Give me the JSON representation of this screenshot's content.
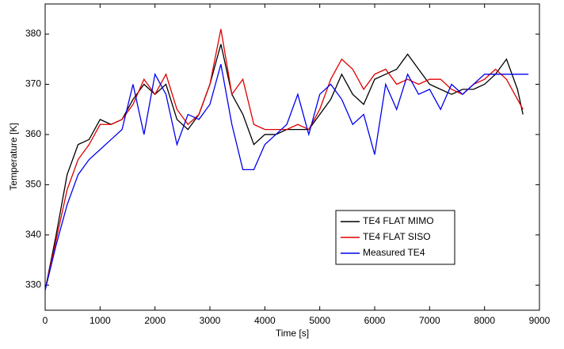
{
  "chart_data": {
    "type": "line",
    "xlabel": "Time [s]",
    "ylabel": "Temperature [K]",
    "x": [
      0,
      200,
      400,
      600,
      800,
      1000,
      1200,
      1400,
      1600,
      1800,
      2000,
      2200,
      2400,
      2600,
      2800,
      3000,
      3200,
      3400,
      3600,
      3800,
      4000,
      4200,
      4400,
      4600,
      4800,
      5000,
      5200,
      5400,
      5600,
      5800,
      6000,
      6200,
      6400,
      6600,
      6800,
      7000,
      7200,
      7400,
      7600,
      7800,
      8000,
      8200,
      8400,
      8600,
      8700,
      8800
    ],
    "series": [
      {
        "name": "TE4 FLAT MIMO",
        "color": "#000000",
        "values": [
          329,
          340,
          352,
          358,
          359,
          363,
          362,
          363,
          367,
          370,
          368,
          370,
          363,
          361,
          364,
          370,
          378,
          368,
          364,
          358,
          360,
          360,
          361,
          361,
          361,
          364,
          367,
          372,
          368,
          366,
          371,
          372,
          373,
          376,
          373,
          370,
          369,
          368,
          369,
          369,
          370,
          372,
          375,
          369,
          364,
          null
        ]
      },
      {
        "name": "TE4 FLAT SISO",
        "color": "#e00000",
        "values": [
          329,
          339,
          349,
          355,
          358,
          362,
          362,
          363,
          366,
          371,
          368,
          372,
          365,
          362,
          364,
          370,
          381,
          368,
          371,
          362,
          361,
          361,
          361,
          362,
          361,
          365,
          371,
          375,
          373,
          369,
          372,
          373,
          370,
          371,
          370,
          371,
          371,
          369,
          368,
          370,
          371,
          373,
          371,
          367,
          365,
          null
        ]
      },
      {
        "name": "Measured TE4",
        "color": "#0000ee",
        "values": [
          329,
          338,
          346,
          352,
          355,
          357,
          359,
          361,
          370,
          360,
          372,
          368,
          358,
          364,
          363,
          366,
          374,
          362,
          353,
          353,
          358,
          360,
          362,
          368,
          360,
          368,
          370,
          367,
          362,
          364,
          356,
          370,
          365,
          372,
          368,
          369,
          365,
          370,
          368,
          370,
          372,
          372,
          372,
          372,
          372,
          372
        ]
      }
    ],
    "xlim": [
      0,
      9000
    ],
    "xticks": [
      0,
      1000,
      2000,
      3000,
      4000,
      5000,
      6000,
      7000,
      8000,
      9000
    ],
    "ylim": [
      325,
      386
    ],
    "yticks": [
      330,
      340,
      350,
      360,
      370,
      380
    ],
    "grid": false,
    "legend": "lower right"
  }
}
